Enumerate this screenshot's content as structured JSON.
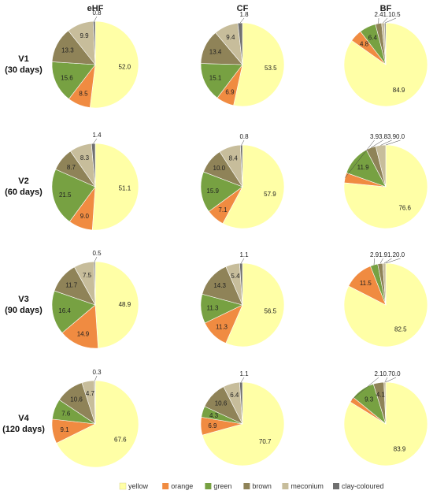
{
  "chart_data": {
    "type": "pie",
    "columns": [
      "eHF",
      "CF",
      "BF"
    ],
    "rows": [
      {
        "label": "V1",
        "sublabel": "(30 days)"
      },
      {
        "label": "V2",
        "sublabel": "(60 days)"
      },
      {
        "label": "V3",
        "sublabel": "(90 days)"
      },
      {
        "label": "V4",
        "sublabel": "(120 days)"
      }
    ],
    "categories": [
      "yellow",
      "orange",
      "green",
      "brown",
      "meconium",
      "clay-coloured"
    ],
    "colors": [
      "#ffffa6",
      "#f08b41",
      "#77a142",
      "#8f8358",
      "#c7bd9b",
      "#707070"
    ],
    "charts": [
      {
        "row": "V1",
        "column": "eHF",
        "values": [
          52.0,
          8.5,
          15.6,
          13.3,
          9.9,
          0.8
        ],
        "labels": [
          "52.0",
          "8.5",
          "15.6",
          "13.3",
          "9.9",
          "0.8"
        ]
      },
      {
        "row": "V1",
        "column": "CF",
        "values": [
          53.5,
          6.9,
          15.1,
          13.4,
          9.4,
          1.8
        ],
        "labels": [
          "53.5",
          "6.9",
          "15.1",
          "13.4",
          "9.4",
          "1.8"
        ]
      },
      {
        "row": "V1",
        "column": "BF",
        "values": [
          84.9,
          4.8,
          6.4,
          2.4,
          1.1,
          0.5
        ],
        "labels": [
          "84.9",
          "4.8",
          "6.4",
          "2.4",
          "1.1",
          "0.5"
        ]
      },
      {
        "row": "V2",
        "column": "eHF",
        "values": [
          51.1,
          9.0,
          21.5,
          8.7,
          8.3,
          1.4
        ],
        "labels": [
          "51.1",
          "9.0",
          "21.5",
          "8.7",
          "8.3",
          "1.4"
        ]
      },
      {
        "row": "V2",
        "column": "CF",
        "values": [
          57.9,
          7.1,
          15.9,
          10.0,
          8.4,
          0.8
        ],
        "labels": [
          "57.9",
          "7.1",
          "15.9",
          "10.0",
          "8.4",
          "0.8"
        ]
      },
      {
        "row": "V2",
        "column": "BF",
        "values": [
          76.6,
          3.9,
          11.9,
          3.8,
          3.9,
          0.0
        ],
        "labels": [
          "76.6",
          "3.9",
          "11.9",
          "3.8",
          "3.9",
          "0.0"
        ]
      },
      {
        "row": "V3",
        "column": "eHF",
        "values": [
          48.9,
          14.9,
          16.4,
          11.7,
          7.5,
          0.5
        ],
        "labels": [
          "48.9",
          "14.9",
          "16.4",
          "11.7",
          "7.5",
          "0.5"
        ]
      },
      {
        "row": "V3",
        "column": "CF",
        "values": [
          56.5,
          11.3,
          11.3,
          14.3,
          5.4,
          1.1
        ],
        "labels": [
          "56.5",
          "11.3",
          "11.3",
          "14.3",
          "5.4",
          "1.1"
        ]
      },
      {
        "row": "V3",
        "column": "BF",
        "values": [
          82.5,
          11.5,
          2.9,
          1.9,
          1.2,
          0.0
        ],
        "labels": [
          "82.5",
          "11.5",
          "2.9",
          "1.9",
          "1.2",
          "0.0"
        ]
      },
      {
        "row": "V4",
        "column": "eHF",
        "values": [
          67.6,
          9.1,
          7.6,
          10.6,
          4.7,
          0.3
        ],
        "labels": [
          "67.6",
          "9.1",
          "7.6",
          "10.6",
          "4.7",
          "0.3"
        ]
      },
      {
        "row": "V4",
        "column": "CF",
        "values": [
          70.7,
          6.9,
          4.3,
          10.6,
          6.4,
          1.1
        ],
        "labels": [
          "70.7",
          "6.9",
          "4.3",
          "10.6",
          "6.4",
          "1.1"
        ]
      },
      {
        "row": "V4",
        "column": "BF",
        "values": [
          83.9,
          2.1,
          9.3,
          4.1,
          0.7,
          0.0
        ],
        "labels": [
          "83.9",
          "2.1",
          "9.3",
          "4.1",
          "0.7",
          "0.0"
        ]
      }
    ],
    "legend": {
      "position": "bottom",
      "entries": [
        "yellow",
        "orange",
        "green",
        "brown",
        "meconium",
        "clay-coloured"
      ]
    }
  }
}
